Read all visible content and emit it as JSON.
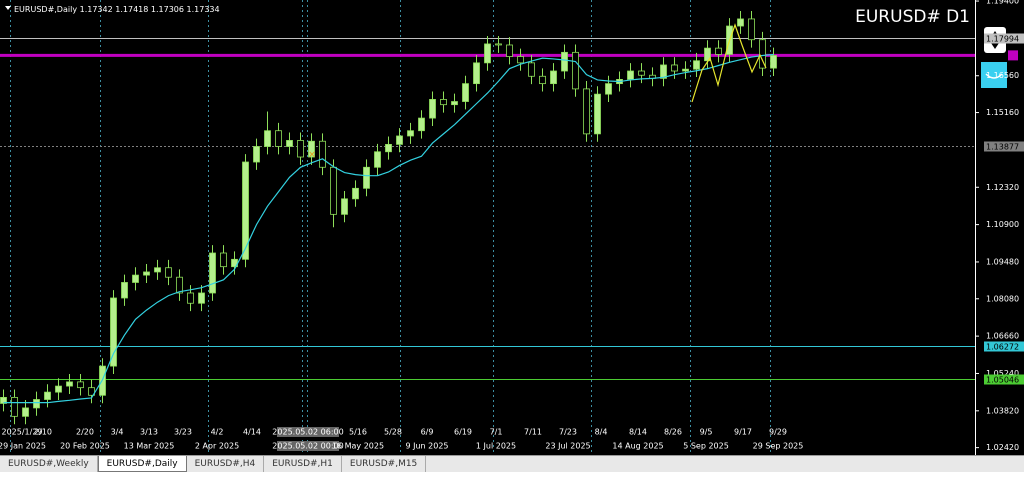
{
  "chart_data": {
    "type": "candlestick",
    "header": {
      "symbol": "EURUSD#,Daily",
      "ohlc": [
        1.17342,
        1.17418,
        1.17306,
        1.17334
      ]
    },
    "title": "EURUSD# D1",
    "ylim": [
      1.0214,
      1.1944
    ],
    "yticks": [
      {
        "value": 1.194,
        "label": "1.19400"
      },
      {
        "value": 1.1656,
        "label": "1.16560"
      },
      {
        "value": 1.1516,
        "label": "1.15160"
      },
      {
        "value": 1.1232,
        "label": "1.12320"
      },
      {
        "value": 1.109,
        "label": "1.10900"
      },
      {
        "value": 1.0948,
        "label": "1.09480"
      },
      {
        "value": 1.0808,
        "label": "1.08080"
      },
      {
        "value": 1.0666,
        "label": "1.06660"
      },
      {
        "value": 1.0524,
        "label": "1.05240"
      },
      {
        "value": 1.0382,
        "label": "1.03820"
      },
      {
        "value": 1.0242,
        "label": "1.02420"
      }
    ],
    "levels": [
      {
        "value": 1.17994,
        "color": "#c0c0c0"
      },
      {
        "value": 1.13877,
        "color": "#808080"
      },
      {
        "value": 1.06272,
        "color": "#33c7d6"
      },
      {
        "value": 1.05046,
        "color": "#4ccc33"
      }
    ],
    "current_price": {
      "value": 1.17334,
      "color": "#c000c0"
    },
    "date_labels_top": [
      "2025/1/29",
      "2/10",
      "2/20",
      "3/4",
      "3/13",
      "3/23",
      "4/2",
      "4/14",
      "2025.05.02 06:00",
      "5/16",
      "5/28",
      "6/9",
      "6/19",
      "7/1",
      "7/11",
      "7/23",
      "8/4",
      "8/14",
      "8/26",
      "9/5",
      "9/17",
      "9/29"
    ],
    "date_labels_bottom": [
      "29 Jan 2025",
      "20 Feb 2025",
      "13 Mar 2025",
      "2 Apr 2025",
      "2025.05.02 00:00",
      "16 May 2025",
      "9 Jun 2025",
      "1 Jul 2025",
      "23 Jul 2025",
      "14 Aug 2025",
      "5 Sep 2025",
      "29 Sep 2025"
    ],
    "bull_color": "#b4f08c",
    "bear_color": "#000000",
    "wick_color": "#8fe05a",
    "ma_color": "#33d1e0",
    "candles": [
      [
        1.041,
        1.0463,
        1.038,
        1.0433
      ],
      [
        1.0433,
        1.0463,
        1.0331,
        1.0361
      ],
      [
        1.0361,
        1.0423,
        1.0331,
        1.0393
      ],
      [
        1.0393,
        1.0455,
        1.0363,
        1.0425
      ],
      [
        1.0425,
        1.0483,
        1.0395,
        1.0453
      ],
      [
        1.0453,
        1.0506,
        1.0423,
        1.0476
      ],
      [
        1.0476,
        1.0522,
        1.0446,
        1.0492
      ],
      [
        1.0492,
        1.0522,
        1.044,
        1.047
      ],
      [
        1.047,
        1.05,
        1.0411,
        1.0441
      ],
      [
        1.0441,
        1.0582,
        1.0411,
        1.0552
      ],
      [
        1.0552,
        1.0841,
        1.0522,
        1.0811
      ],
      [
        1.0811,
        1.09,
        1.0781,
        1.087
      ],
      [
        1.087,
        1.0928,
        1.084,
        1.0898
      ],
      [
        1.0898,
        1.094,
        1.0868,
        1.091
      ],
      [
        1.091,
        1.0956,
        1.088,
        1.0926
      ],
      [
        1.0926,
        1.0956,
        1.086,
        1.089
      ],
      [
        1.089,
        1.092,
        1.08,
        1.083
      ],
      [
        1.083,
        1.086,
        1.0761,
        1.0791
      ],
      [
        1.0791,
        1.086,
        1.0761,
        1.083
      ],
      [
        1.083,
        1.1012,
        1.08,
        1.0982
      ],
      [
        1.0982,
        1.1012,
        1.09,
        1.093
      ],
      [
        1.093,
        1.0988,
        1.09,
        1.0958
      ],
      [
        1.0958,
        1.1358,
        1.0928,
        1.1328
      ],
      [
        1.1328,
        1.1417,
        1.1298,
        1.1387
      ],
      [
        1.1387,
        1.152,
        1.1357,
        1.1447
      ],
      [
        1.1447,
        1.1477,
        1.1357,
        1.1387
      ],
      [
        1.1387,
        1.144,
        1.1357,
        1.141
      ],
      [
        1.141,
        1.144,
        1.1317,
        1.1347
      ],
      [
        1.1347,
        1.1437,
        1.1317,
        1.1407
      ],
      [
        1.1407,
        1.1437,
        1.1278,
        1.1308
      ],
      [
        1.1308,
        1.1338,
        1.108,
        1.1129
      ],
      [
        1.1129,
        1.1218,
        1.1099,
        1.1188
      ],
      [
        1.1188,
        1.1258,
        1.1158,
        1.1228
      ],
      [
        1.1228,
        1.1338,
        1.1198,
        1.1308
      ],
      [
        1.1308,
        1.1397,
        1.1278,
        1.1367
      ],
      [
        1.1367,
        1.1425,
        1.1337,
        1.1395
      ],
      [
        1.1395,
        1.1457,
        1.1365,
        1.1427
      ],
      [
        1.1427,
        1.1477,
        1.1397,
        1.1447
      ],
      [
        1.1447,
        1.1525,
        1.1417,
        1.1495
      ],
      [
        1.1495,
        1.1596,
        1.1465,
        1.1566
      ],
      [
        1.1566,
        1.1596,
        1.1516,
        1.1546
      ],
      [
        1.1546,
        1.1588,
        1.1516,
        1.1558
      ],
      [
        1.1558,
        1.1656,
        1.1528,
        1.1626
      ],
      [
        1.1626,
        1.1735,
        1.1596,
        1.1705
      ],
      [
        1.1705,
        1.1807,
        1.1675,
        1.1777
      ],
      [
        1.1777,
        1.1807,
        1.1743,
        1.1773
      ],
      [
        1.1773,
        1.1803,
        1.1699,
        1.1729
      ],
      [
        1.1729,
        1.1759,
        1.1675,
        1.1705
      ],
      [
        1.1705,
        1.1735,
        1.1624,
        1.1654
      ],
      [
        1.1654,
        1.1684,
        1.1596,
        1.1626
      ],
      [
        1.1626,
        1.1704,
        1.1596,
        1.1674
      ],
      [
        1.1674,
        1.1775,
        1.1644,
        1.1745
      ],
      [
        1.1745,
        1.1775,
        1.1576,
        1.1606
      ],
      [
        1.1606,
        1.1636,
        1.1405,
        1.1435
      ],
      [
        1.1435,
        1.1616,
        1.1405,
        1.1586
      ],
      [
        1.1586,
        1.1656,
        1.1556,
        1.1626
      ],
      [
        1.1626,
        1.1672,
        1.1596,
        1.1642
      ],
      [
        1.1642,
        1.1704,
        1.1612,
        1.1674
      ],
      [
        1.1674,
        1.1704,
        1.1628,
        1.1658
      ],
      [
        1.1658,
        1.1688,
        1.1616,
        1.1646
      ],
      [
        1.1646,
        1.1727,
        1.1616,
        1.1697
      ],
      [
        1.1697,
        1.1727,
        1.1644,
        1.1674
      ],
      [
        1.1674,
        1.1711,
        1.1644,
        1.1681
      ],
      [
        1.1681,
        1.1743,
        1.1651,
        1.1713
      ],
      [
        1.1713,
        1.1791,
        1.1683,
        1.1761
      ],
      [
        1.1761,
        1.1791,
        1.1707,
        1.1737
      ],
      [
        1.1737,
        1.1875,
        1.1707,
        1.1845
      ],
      [
        1.1845,
        1.1902,
        1.1815,
        1.1872
      ],
      [
        1.1872,
        1.1902,
        1.1763,
        1.1793
      ],
      [
        1.1793,
        1.1823,
        1.1655,
        1.1685
      ],
      [
        1.1685,
        1.1763,
        1.1655,
        1.1733
      ]
    ],
    "ma": [
      1.0413,
      1.0413,
      1.0413,
      1.0413,
      1.0413,
      1.0418,
      1.0422,
      1.0427,
      1.0431,
      1.05,
      1.06,
      1.067,
      1.073,
      1.0765,
      1.0795,
      1.082,
      1.0835,
      1.0842,
      1.085,
      1.0865,
      1.088,
      1.092,
      1.1,
      1.109,
      1.116,
      1.1215,
      1.127,
      1.1308,
      1.1325,
      1.134,
      1.131,
      1.1288,
      1.128,
      1.1276,
      1.1276,
      1.129,
      1.1315,
      1.1335,
      1.135,
      1.14,
      1.1435,
      1.147,
      1.151,
      1.155,
      1.159,
      1.1635,
      1.1683,
      1.17,
      1.1712,
      1.1723,
      1.172,
      1.1716,
      1.171,
      1.166,
      1.164,
      1.1636,
      1.1634,
      1.164,
      1.1644,
      1.1646,
      1.165,
      1.166,
      1.1668,
      1.1675,
      1.1683,
      1.1695,
      1.1707,
      1.1717,
      1.1727,
      1.1733,
      1.1737
    ]
  },
  "tabs": [
    "EURUSD#,Weekly",
    "EURUSD#,Daily",
    "EURUSD#,H4",
    "EURUSD#,H1",
    "EURUSD#,M15"
  ]
}
